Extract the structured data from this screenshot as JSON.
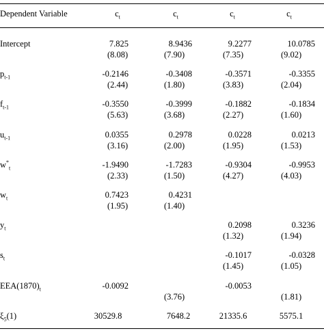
{
  "table": {
    "header": [
      [
        {
          "text": "Dependent Variable"
        }
      ],
      [
        {
          "text": "c"
        },
        {
          "sub": "t"
        }
      ],
      [
        {
          "text": "c"
        },
        {
          "sub": "t"
        }
      ],
      [
        {
          "text": "c"
        },
        {
          "sub": "t"
        }
      ],
      [
        {
          "text": "c"
        },
        {
          "sub": "t"
        }
      ]
    ],
    "rows": [
      {
        "label": [
          {
            "text": "Intercept"
          }
        ],
        "cells": [
          {
            "coef": "7.825",
            "tstat": "(8.08)"
          },
          {
            "coef": "8.9436",
            "tstat": "(7.90)"
          },
          {
            "coef": "9.2277",
            "tstat": "(7.35)"
          },
          {
            "coef": "10.0785",
            "tstat": "(9.02)"
          }
        ]
      },
      {
        "label": [
          {
            "text": "p"
          },
          {
            "sub": "t-1"
          }
        ],
        "cells": [
          {
            "coef": "-0.2146",
            "tstat": "(2.44)"
          },
          {
            "coef": "-0.3408",
            "tstat": "(1.80)"
          },
          {
            "coef": "-0.3571",
            "tstat": "(3.83)"
          },
          {
            "coef": "-0.3355",
            "tstat": "(2.04)"
          }
        ]
      },
      {
        "label": [
          {
            "text": "f"
          },
          {
            "sub": "t-1"
          }
        ],
        "cells": [
          {
            "coef": "-0.3550",
            "tstat": "(5.63)"
          },
          {
            "coef": "-0.3999",
            "tstat": "(3.68)"
          },
          {
            "coef": "-0.1882",
            "tstat": "(2.27)"
          },
          {
            "coef": "-0.1834",
            "tstat": "(1.60)"
          }
        ]
      },
      {
        "label": [
          {
            "text": "u"
          },
          {
            "sub": "t-1"
          }
        ],
        "cells": [
          {
            "coef": "0.0355",
            "tstat": "(3.16)"
          },
          {
            "coef": "0.2978",
            "tstat": "(2.00)"
          },
          {
            "coef": "0.0228",
            "tstat": "(1.95)"
          },
          {
            "coef": "0.0213",
            "tstat": "(1.53)"
          }
        ]
      },
      {
        "label": [
          {
            "text": "w"
          },
          {
            "sup": "*"
          },
          {
            "sub": "t"
          }
        ],
        "cells": [
          {
            "coef": "-1.9490",
            "tstat": "(2.33)"
          },
          {
            "coef": "-1.7283",
            "tstat": "(1.50)"
          },
          {
            "coef": "-0.9304",
            "tstat": "(4.27)"
          },
          {
            "coef": "-0.9953",
            "tstat": "(4.03)"
          }
        ]
      },
      {
        "label": [
          {
            "text": "w"
          },
          {
            "sub": "t"
          }
        ],
        "cells": [
          {
            "coef": "0.7423",
            "tstat": "(1.95)"
          },
          {
            "coef": "0.4231",
            "tstat": "(1.40)"
          },
          null,
          null
        ]
      },
      {
        "label": [
          {
            "text": "y"
          },
          {
            "sub": "t"
          }
        ],
        "cells": [
          null,
          null,
          {
            "coef": "0.2098",
            "tstat": "(1.32)"
          },
          {
            "coef": "0.3236",
            "tstat": "(1.94)"
          }
        ]
      },
      {
        "label": [
          {
            "text": "s"
          },
          {
            "sub": "t"
          }
        ],
        "cells": [
          null,
          null,
          {
            "coef": "-0.1017",
            "tstat": "(1.45)"
          },
          {
            "coef": "-0.0328",
            "tstat": "(1.05)"
          }
        ]
      },
      {
        "label": [
          {
            "text": "EEA(1870)"
          },
          {
            "sub": "t"
          }
        ],
        "cells": [
          {
            "coef": "-0.0092"
          },
          {
            "tstat": "(3.76)"
          },
          {
            "coef": "-0.0053"
          },
          {
            "tstat": "(1.81)"
          }
        ]
      },
      {
        "label": [
          {
            "text": "ξ"
          },
          {
            "sub": "5"
          },
          {
            "text": "(1)"
          }
        ],
        "cells": [
          {
            "value": "30529.8"
          },
          {
            "value": "7648.2"
          },
          {
            "value": "21335.6"
          },
          {
            "value": "5575.1"
          }
        ]
      }
    ]
  }
}
